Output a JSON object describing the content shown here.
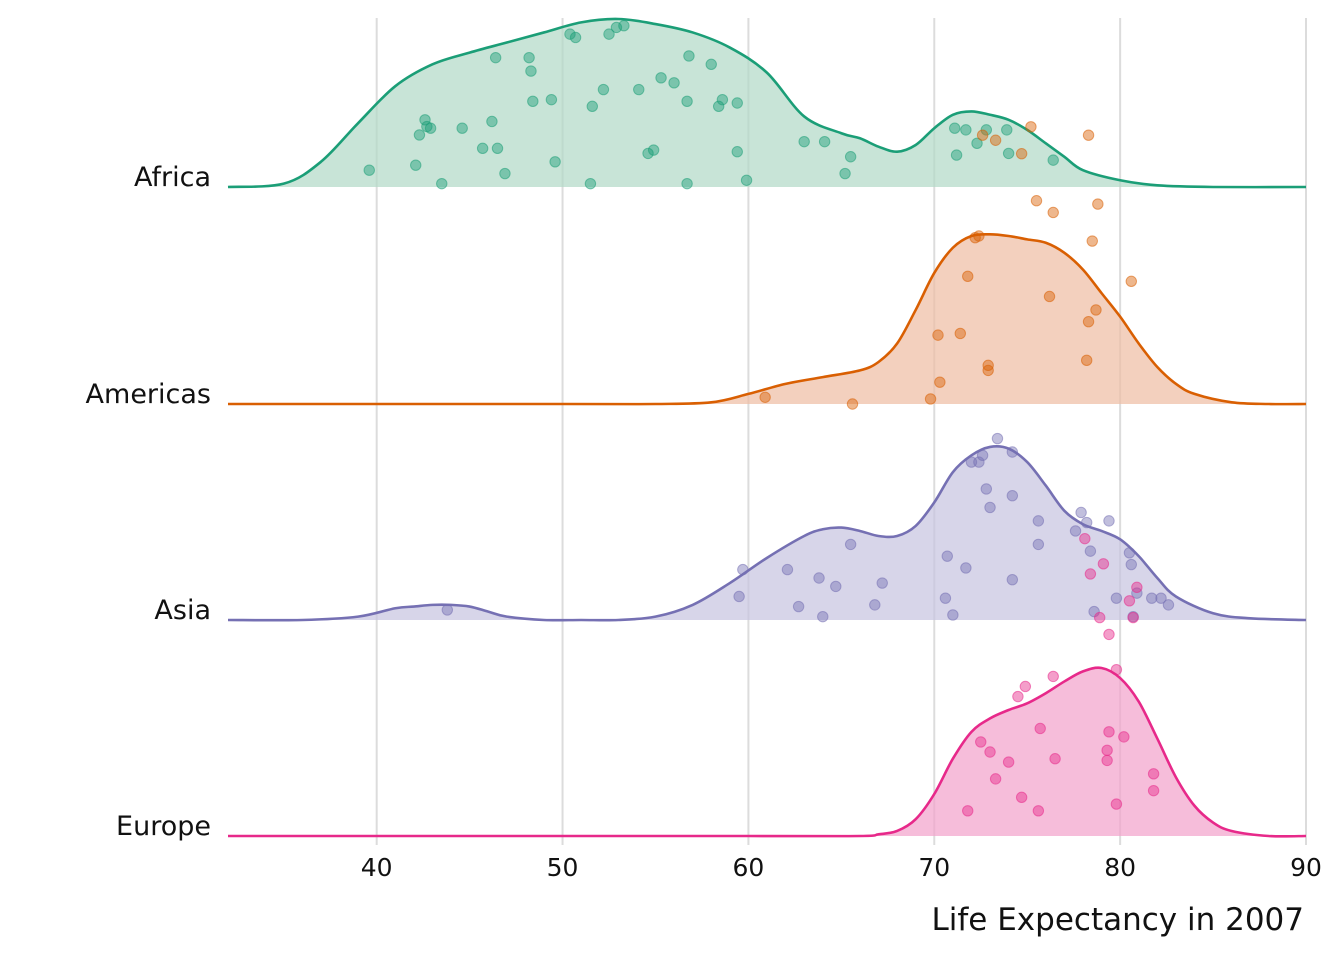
{
  "chart_data": {
    "type": "ridgeline",
    "xlabel": "Life Expectancy in 2007",
    "xlim": [
      32,
      90
    ],
    "x_ticks": [
      40,
      50,
      60,
      70,
      80,
      90
    ],
    "grid": "vertical",
    "series": [
      {
        "name": "Africa",
        "color": "#1b9e77",
        "fill": "#b3d9c8",
        "density_x": [
          32,
          35,
          37,
          39,
          41,
          43,
          45,
          47,
          49,
          51,
          53,
          55,
          57,
          59,
          61,
          63,
          65,
          66,
          67,
          68,
          69,
          70,
          71,
          72,
          73,
          74,
          75,
          76,
          77,
          78,
          80,
          82,
          85,
          90
        ],
        "density": [
          0.0,
          0.02,
          0.15,
          0.38,
          0.6,
          0.73,
          0.8,
          0.86,
          0.92,
          0.98,
          1.0,
          0.97,
          0.92,
          0.83,
          0.68,
          0.42,
          0.32,
          0.29,
          0.24,
          0.21,
          0.25,
          0.35,
          0.43,
          0.45,
          0.43,
          0.4,
          0.34,
          0.26,
          0.18,
          0.1,
          0.04,
          0.01,
          0.0,
          0.0
        ],
        "points": [
          [
            39.6,
            0.1
          ],
          [
            42.1,
            0.13
          ],
          [
            42.3,
            0.31
          ],
          [
            42.6,
            0.4
          ],
          [
            42.7,
            0.36
          ],
          [
            42.9,
            0.35
          ],
          [
            43.5,
            0.02
          ],
          [
            44.6,
            0.35
          ],
          [
            45.7,
            0.23
          ],
          [
            46.2,
            0.39
          ],
          [
            46.4,
            0.77
          ],
          [
            46.5,
            0.23
          ],
          [
            46.9,
            0.08
          ],
          [
            48.2,
            0.77
          ],
          [
            48.3,
            0.69
          ],
          [
            48.4,
            0.51
          ],
          [
            49.4,
            0.52
          ],
          [
            49.6,
            0.15
          ],
          [
            50.4,
            0.91
          ],
          [
            50.7,
            0.89
          ],
          [
            51.5,
            0.02
          ],
          [
            51.6,
            0.48
          ],
          [
            52.2,
            0.58
          ],
          [
            52.5,
            0.91
          ],
          [
            52.9,
            0.95
          ],
          [
            53.3,
            0.96
          ],
          [
            54.1,
            0.58
          ],
          [
            54.6,
            0.2
          ],
          [
            54.9,
            0.22
          ],
          [
            55.3,
            0.65
          ],
          [
            56.0,
            0.62
          ],
          [
            56.7,
            0.02
          ],
          [
            56.7,
            0.51
          ],
          [
            56.8,
            0.78
          ],
          [
            58.0,
            0.73
          ],
          [
            58.4,
            0.48
          ],
          [
            58.6,
            0.52
          ],
          [
            59.4,
            0.5
          ],
          [
            59.4,
            0.21
          ],
          [
            59.9,
            0.04
          ],
          [
            63.0,
            0.27
          ],
          [
            64.1,
            0.27
          ],
          [
            65.2,
            0.08
          ],
          [
            65.5,
            0.18
          ],
          [
            71.1,
            0.35
          ],
          [
            71.2,
            0.19
          ],
          [
            71.7,
            0.34
          ],
          [
            72.3,
            0.26
          ],
          [
            72.8,
            0.34
          ],
          [
            73.9,
            0.34
          ],
          [
            74.0,
            0.2
          ],
          [
            76.4,
            0.16
          ]
        ]
      },
      {
        "name": "Americas",
        "color": "#d95f02",
        "fill": "#efbea5",
        "density_x": [
          32,
          50,
          55,
          58,
          60,
          62,
          64,
          66,
          67,
          68,
          69,
          70,
          71,
          72,
          73,
          74,
          75,
          76,
          77,
          78,
          79,
          80,
          81,
          82,
          83,
          84,
          86,
          88,
          90
        ],
        "density": [
          0.0,
          0.0,
          0.0,
          0.01,
          0.06,
          0.12,
          0.16,
          0.2,
          0.25,
          0.36,
          0.56,
          0.78,
          0.93,
          1.0,
          1.01,
          1.0,
          0.98,
          0.96,
          0.9,
          0.8,
          0.66,
          0.52,
          0.36,
          0.22,
          0.12,
          0.06,
          0.01,
          0.0,
          0.0
        ],
        "points": [
          [
            60.9,
            0.04
          ],
          [
            65.6,
            0.0
          ],
          [
            69.8,
            0.03
          ],
          [
            70.2,
            0.41
          ],
          [
            70.3,
            0.13
          ],
          [
            71.4,
            0.42
          ],
          [
            71.8,
            0.76
          ],
          [
            72.2,
            0.99
          ],
          [
            72.4,
            1.0
          ],
          [
            72.6,
            1.6
          ],
          [
            72.9,
            0.2
          ],
          [
            72.9,
            0.23
          ],
          [
            73.3,
            1.57
          ],
          [
            74.7,
            1.49
          ],
          [
            75.2,
            1.65
          ],
          [
            75.5,
            1.21
          ],
          [
            76.2,
            0.64
          ],
          [
            76.4,
            1.14
          ],
          [
            78.2,
            0.26
          ],
          [
            78.3,
            0.49
          ],
          [
            78.3,
            1.6
          ],
          [
            78.5,
            0.97
          ],
          [
            78.7,
            0.56
          ],
          [
            78.8,
            1.19
          ],
          [
            80.6,
            0.73
          ]
        ]
      },
      {
        "name": "Asia",
        "color": "#7570b3",
        "fill": "#c7c5e0",
        "density_x": [
          32,
          36,
          39,
          41,
          42,
          43,
          44,
          45,
          46,
          47,
          49,
          51,
          53,
          55,
          57,
          59,
          61,
          63,
          64,
          65,
          66,
          67,
          68,
          69,
          70,
          71,
          72,
          73,
          74,
          75,
          76,
          77,
          78,
          79,
          80,
          81,
          82,
          83,
          85,
          87,
          90
        ],
        "density": [
          0.0,
          0.0,
          0.02,
          0.07,
          0.08,
          0.09,
          0.09,
          0.08,
          0.05,
          0.02,
          0.0,
          0.0,
          0.0,
          0.02,
          0.09,
          0.22,
          0.37,
          0.5,
          0.54,
          0.55,
          0.53,
          0.5,
          0.5,
          0.56,
          0.7,
          0.88,
          0.98,
          1.03,
          1.02,
          0.94,
          0.8,
          0.65,
          0.57,
          0.53,
          0.48,
          0.38,
          0.25,
          0.14,
          0.04,
          0.01,
          0.0
        ],
        "points": [
          [
            43.8,
            0.06
          ],
          [
            59.5,
            0.14
          ],
          [
            59.7,
            0.3
          ],
          [
            62.1,
            0.3
          ],
          [
            62.7,
            0.08
          ],
          [
            63.8,
            0.25
          ],
          [
            64.0,
            0.02
          ],
          [
            64.7,
            0.2
          ],
          [
            65.5,
            0.45
          ],
          [
            66.8,
            0.09
          ],
          [
            67.2,
            0.22
          ],
          [
            70.6,
            0.13
          ],
          [
            70.7,
            0.38
          ],
          [
            71.0,
            0.03
          ],
          [
            71.7,
            0.31
          ],
          [
            72.0,
            0.94
          ],
          [
            72.4,
            0.94
          ],
          [
            72.6,
            0.98
          ],
          [
            72.8,
            0.78
          ],
          [
            73.0,
            0.67
          ],
          [
            73.4,
            1.08
          ],
          [
            74.2,
            0.74
          ],
          [
            74.2,
            0.24
          ],
          [
            74.2,
            1.0
          ],
          [
            75.6,
            0.59
          ],
          [
            75.6,
            0.45
          ],
          [
            77.6,
            0.53
          ],
          [
            77.9,
            0.64
          ],
          [
            78.2,
            0.58
          ],
          [
            78.4,
            0.41
          ],
          [
            78.6,
            0.05
          ],
          [
            79.4,
            0.59
          ],
          [
            79.8,
            0.13
          ],
          [
            80.5,
            0.4
          ],
          [
            80.6,
            0.33
          ],
          [
            80.7,
            0.02
          ],
          [
            80.9,
            0.16
          ],
          [
            81.7,
            0.13
          ],
          [
            82.2,
            0.13
          ],
          [
            82.6,
            0.09
          ]
        ]
      },
      {
        "name": "Europe",
        "color": "#e7298a",
        "fill": "#f3a3cc",
        "density_x": [
          32,
          60,
          66,
          67,
          68,
          69,
          70,
          71,
          72,
          73,
          74,
          75,
          76,
          77,
          78,
          79,
          80,
          81,
          82,
          83,
          84,
          85,
          86,
          88,
          90
        ],
        "density": [
          0.0,
          0.0,
          0.0,
          0.01,
          0.03,
          0.1,
          0.25,
          0.46,
          0.62,
          0.7,
          0.75,
          0.79,
          0.85,
          0.92,
          0.98,
          1.0,
          0.94,
          0.8,
          0.58,
          0.35,
          0.18,
          0.08,
          0.03,
          0.0,
          0.0
        ],
        "points": [
          [
            71.8,
            0.15
          ],
          [
            72.5,
            0.56
          ],
          [
            73.0,
            0.5
          ],
          [
            73.3,
            0.34
          ],
          [
            74.0,
            0.44
          ],
          [
            74.5,
            0.83
          ],
          [
            74.7,
            0.23
          ],
          [
            74.9,
            0.89
          ],
          [
            75.6,
            0.15
          ],
          [
            75.7,
            0.64
          ],
          [
            76.4,
            0.95
          ],
          [
            76.5,
            0.46
          ],
          [
            78.1,
            1.77
          ],
          [
            78.4,
            1.56
          ],
          [
            78.9,
            1.3
          ],
          [
            79.1,
            1.62
          ],
          [
            79.3,
            0.51
          ],
          [
            79.3,
            0.45
          ],
          [
            79.4,
            1.2
          ],
          [
            79.4,
            0.62
          ],
          [
            79.8,
            0.99
          ],
          [
            79.8,
            0.19
          ],
          [
            80.2,
            0.59
          ],
          [
            80.5,
            1.4
          ],
          [
            80.7,
            1.3
          ],
          [
            80.9,
            1.48
          ],
          [
            81.8,
            0.37
          ],
          [
            81.8,
            0.27
          ]
        ]
      }
    ]
  }
}
